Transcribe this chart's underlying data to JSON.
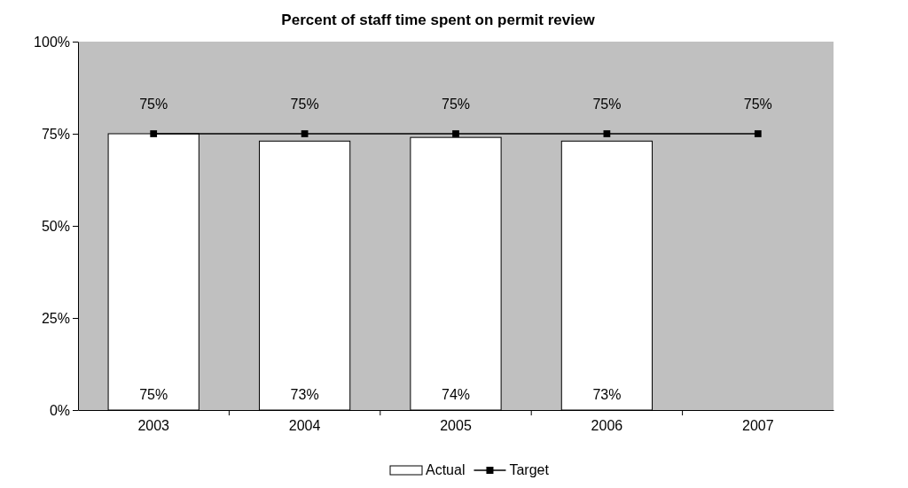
{
  "chart_data": {
    "type": "bar",
    "title": "Percent of staff time spent on permit review",
    "categories": [
      "2003",
      "2004",
      "2005",
      "2006",
      "2007"
    ],
    "series": [
      {
        "name": "Actual",
        "color": "#ffffff",
        "values": [
          75,
          73,
          74,
          73,
          null
        ],
        "value_labels": [
          "75%",
          "73%",
          "74%",
          "73%",
          null
        ]
      },
      {
        "name": "Target",
        "type": "line",
        "color": "#000000",
        "marker": "square",
        "values": [
          75,
          75,
          75,
          75,
          75
        ],
        "value_labels": [
          "75%",
          "75%",
          "75%",
          "75%",
          "75%"
        ]
      }
    ],
    "ylim": [
      0,
      100
    ],
    "yticks": [
      {
        "value": 0,
        "label": "0%"
      },
      {
        "value": 25,
        "label": "25%"
      },
      {
        "value": 50,
        "label": "50%"
      },
      {
        "value": 75,
        "label": "75%"
      },
      {
        "value": 100,
        "label": "100%"
      }
    ],
    "grid": false,
    "legend": "bottom"
  }
}
